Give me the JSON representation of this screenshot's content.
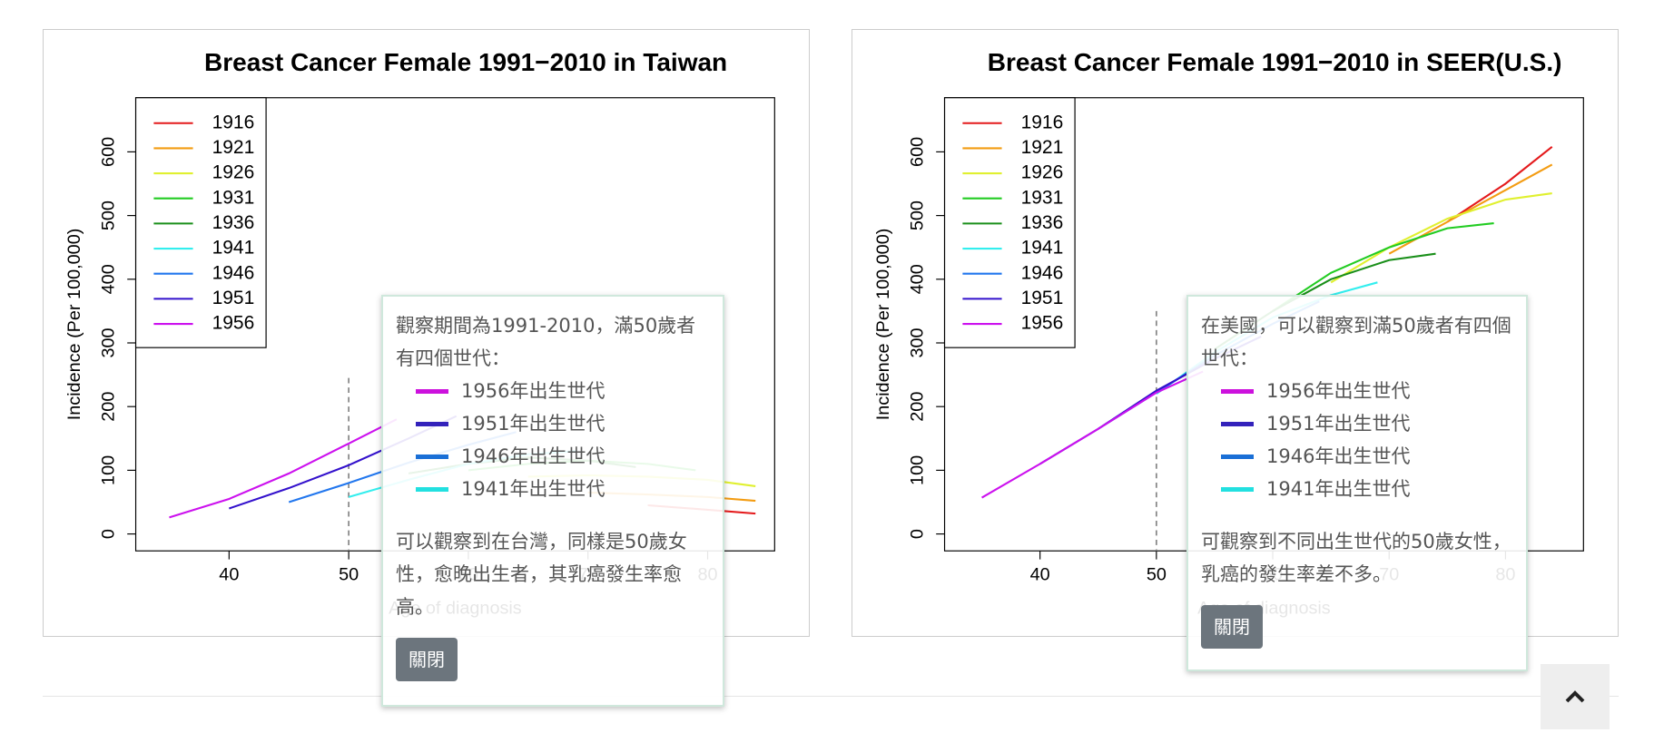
{
  "chart_data": [
    {
      "type": "line",
      "title": "Breast Cancer Female 1991−2010 in Taiwan",
      "xlabel": "Age of diagnosis",
      "ylabel": "Incidence (Per 100,000)",
      "xlim": [
        32.2,
        85.6
      ],
      "ylim": [
        -26.6,
        685
      ],
      "xticks": [
        40,
        50,
        60,
        70,
        80
      ],
      "yticks": [
        0,
        100,
        200,
        300,
        400,
        500,
        600
      ],
      "vline": 50,
      "legend": "top-left",
      "series": [
        {
          "name": "1916",
          "color": "#e41a1c",
          "x": [
            75,
            80,
            84
          ],
          "values": [
            45,
            38,
            32
          ]
        },
        {
          "name": "1921",
          "color": "#f39c12",
          "x": [
            70,
            75,
            80,
            84
          ],
          "values": [
            65,
            62,
            58,
            52
          ]
        },
        {
          "name": "1926",
          "color": "#e0f030",
          "x": [
            65,
            70,
            75,
            80,
            84
          ],
          "values": [
            90,
            92,
            90,
            85,
            75
          ]
        },
        {
          "name": "1931",
          "color": "#22cc22",
          "x": [
            60,
            65,
            70,
            75,
            79
          ],
          "values": [
            100,
            110,
            115,
            110,
            100
          ]
        },
        {
          "name": "1936",
          "color": "#1a8f1a",
          "x": [
            55,
            60,
            65,
            70,
            74
          ],
          "values": [
            95,
            110,
            120,
            115,
            105
          ]
        },
        {
          "name": "1941",
          "color": "#33eeee",
          "x": [
            50,
            55,
            60,
            65,
            69
          ],
          "values": [
            58,
            85,
            110,
            125,
            130
          ]
        },
        {
          "name": "1946",
          "color": "#2277ee",
          "x": [
            45,
            50,
            55,
            60,
            64
          ],
          "values": [
            50,
            80,
            112,
            140,
            160
          ]
        },
        {
          "name": "1951",
          "color": "#3311cc",
          "x": [
            40,
            45,
            50,
            55,
            59
          ],
          "values": [
            40,
            72,
            108,
            150,
            185
          ]
        },
        {
          "name": "1956",
          "color": "#cc11ee",
          "x": [
            35,
            40,
            45,
            50,
            54
          ],
          "values": [
            26,
            55,
            95,
            142,
            180
          ]
        }
      ]
    },
    {
      "type": "line",
      "title": "Breast Cancer Female 1991−2010 in SEER(U.S.)",
      "xlabel": "Age of diagnosis",
      "ylabel": "Incidence (Per 100,000)",
      "xlim": [
        31.8,
        86.7
      ],
      "ylim": [
        -26.6,
        685
      ],
      "xticks": [
        40,
        50,
        60,
        70,
        80
      ],
      "yticks": [
        0,
        100,
        200,
        300,
        400,
        500,
        600
      ],
      "vline": 50,
      "legend": "top-left",
      "series": [
        {
          "name": "1916",
          "color": "#e41a1c",
          "x": [
            75,
            80,
            84
          ],
          "values": [
            490,
            550,
            608
          ]
        },
        {
          "name": "1921",
          "color": "#f39c12",
          "x": [
            70,
            75,
            80,
            84
          ],
          "values": [
            440,
            490,
            540,
            580
          ]
        },
        {
          "name": "1926",
          "color": "#e0f030",
          "x": [
            65,
            70,
            75,
            80,
            84
          ],
          "values": [
            395,
            450,
            495,
            525,
            535
          ]
        },
        {
          "name": "1931",
          "color": "#22cc22",
          "x": [
            60,
            65,
            70,
            75,
            79
          ],
          "values": [
            350,
            410,
            450,
            480,
            488
          ]
        },
        {
          "name": "1936",
          "color": "#1a8f1a",
          "x": [
            55,
            60,
            65,
            70,
            74
          ],
          "values": [
            290,
            350,
            400,
            430,
            440
          ]
        },
        {
          "name": "1941",
          "color": "#33eeee",
          "x": [
            50,
            55,
            60,
            65,
            69
          ],
          "values": [
            220,
            285,
            340,
            375,
            395
          ]
        },
        {
          "name": "1946",
          "color": "#2277ee",
          "x": [
            45,
            50,
            55,
            60,
            64
          ],
          "values": [
            165,
            222,
            280,
            330,
            365
          ]
        },
        {
          "name": "1951",
          "color": "#3311cc",
          "x": [
            40,
            45,
            50,
            55,
            59
          ],
          "values": [
            110,
            165,
            225,
            275,
            310
          ]
        },
        {
          "name": "1956",
          "color": "#cc11ee",
          "x": [
            35,
            40,
            45,
            50,
            54
          ],
          "values": [
            57,
            110,
            165,
            222,
            255
          ]
        }
      ]
    }
  ],
  "popovers": [
    {
      "text1": "觀察期間為1991-2010，滿50歲者有四個世代：",
      "items": [
        {
          "label": "1956年出生世代",
          "color": "#cc11dd"
        },
        {
          "label": "1951年出生世代",
          "color": "#3322bb"
        },
        {
          "label": "1946年出生世代",
          "color": "#1a6fd6"
        },
        {
          "label": "1941年出生世代",
          "color": "#22e0e0"
        }
      ],
      "text2": "可以觀察到在台灣，同樣是50歲女性，愈晚出生者，其乳癌發生率愈高。",
      "button": "關閉"
    },
    {
      "text1": "在美國，可以觀察到滿50歲者有四個世代：",
      "items": [
        {
          "label": "1956年出生世代",
          "color": "#cc11dd"
        },
        {
          "label": "1951年出生世代",
          "color": "#3322bb"
        },
        {
          "label": "1946年出生世代",
          "color": "#1a6fd6"
        },
        {
          "label": "1941年出生世代",
          "color": "#22e0e0"
        }
      ],
      "text2": "可觀察到不同出生世代的50歲女性，乳癌的發生率差不多。",
      "button": "關閉"
    }
  ]
}
